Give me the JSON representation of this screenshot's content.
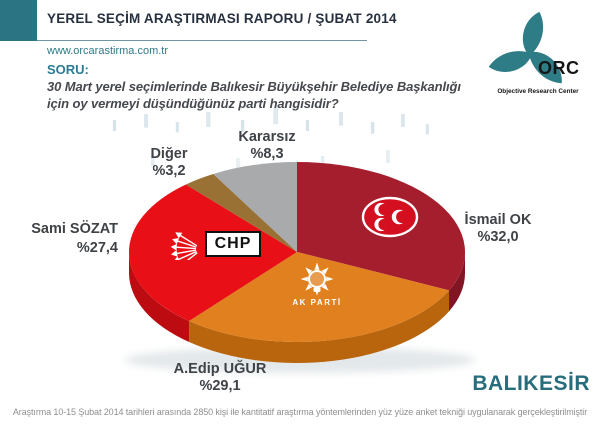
{
  "theme": {
    "accent_teal": "#2b7483",
    "title_color": "#26303f",
    "label_color": "#3f4347"
  },
  "header": {
    "title": "YEREL SEÇİM ARAŞTIRMASI RAPORU / ŞUBAT 2014",
    "website": "www.orcarastirma.com.tr"
  },
  "logo": {
    "name": "ORC",
    "subtitle": "Objective Research Center"
  },
  "question": {
    "label": "SORU:",
    "line1": "30 Mart yerel seçimlerinde Balıkesir Büyükşehir Belediye Başkanlığı",
    "line2": "için oy vermeyi düşündüğünüz parti hangisidir?"
  },
  "chart_data": {
    "type": "pie",
    "style": "3d",
    "start_angle_deg": 0,
    "direction": "clockwise",
    "unit": "%",
    "slices": [
      {
        "key": "mhp",
        "label": "İsmail OK",
        "party": "MHP",
        "value": 32.0,
        "display": "%32,0",
        "color": "#a41e2d",
        "side_color": "#821523"
      },
      {
        "key": "akp",
        "label": "A.Edip UĞUR",
        "party": "AK PARTİ",
        "value": 29.1,
        "display": "%29,1",
        "color": "#e1801f",
        "side_color": "#b9650e"
      },
      {
        "key": "chp",
        "label": "Sami SÖZAT",
        "party": "CHP",
        "value": 27.4,
        "display": "%27,4",
        "color": "#e90f16",
        "side_color": "#bd0c11"
      },
      {
        "key": "diger",
        "label": "Diğer",
        "party": "",
        "value": 3.2,
        "display": "%3,2",
        "color": "#9a7134",
        "side_color": "#7a5927"
      },
      {
        "key": "kararsiz",
        "label": "Kararsız",
        "party": "",
        "value": 8.3,
        "display": "%8,3",
        "color": "#a8aaac",
        "side_color": "#8a8c8e"
      }
    ]
  },
  "region": "BALIKESİR",
  "footnote": "Araştırma 10-15 Şubat 2014 tarihleri arasında 2850 kişi ile kantitatif araştırma yöntemlerinden yüz yüze anket tekniği uygulanarak gerçekleştirilmiştir"
}
